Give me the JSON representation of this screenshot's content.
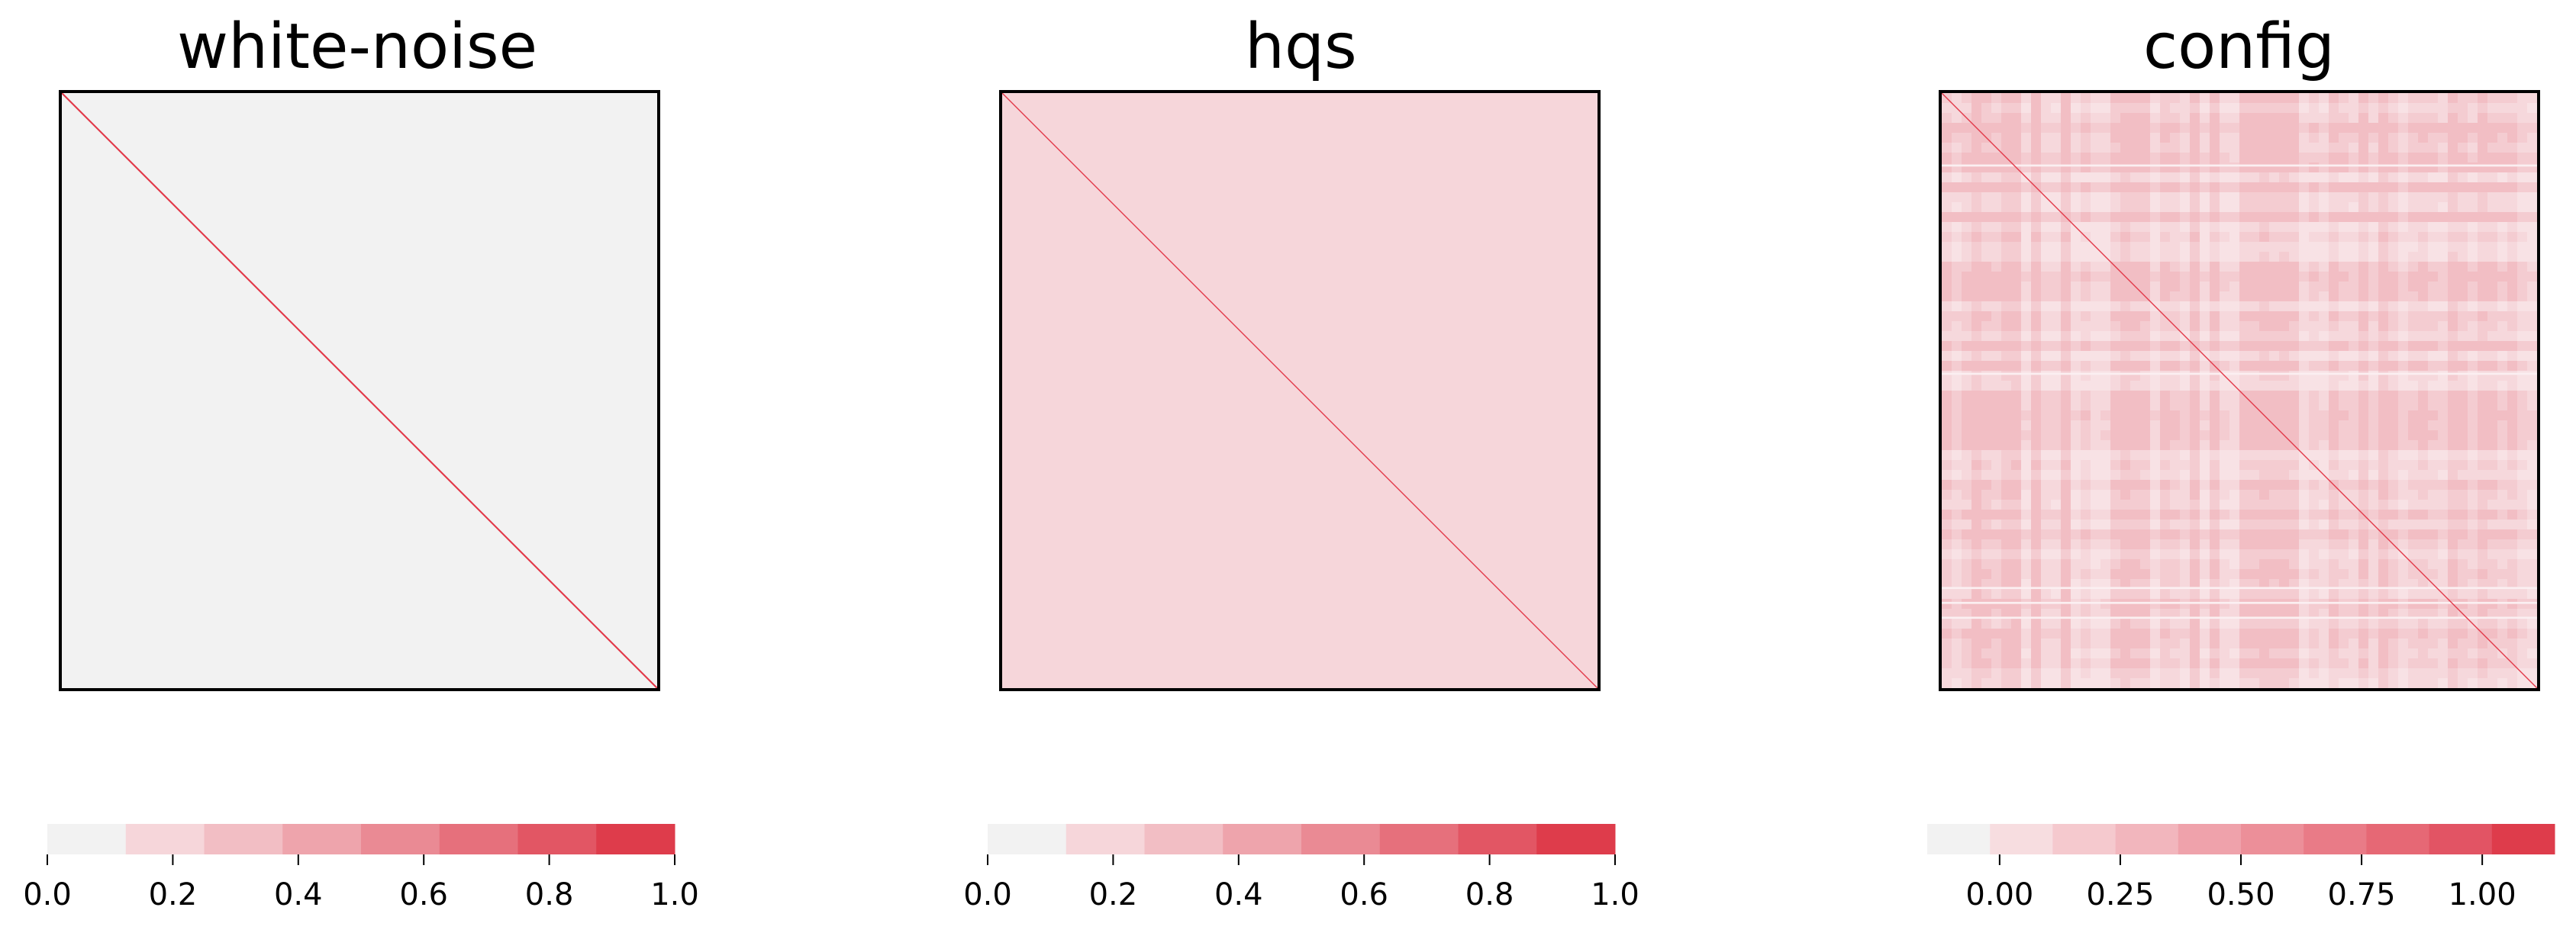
{
  "chart_data": [
    {
      "type": "heatmap",
      "title": "white-noise",
      "matrix": "correlation",
      "off_diagonal_value": 0.0,
      "diagonal_value": 1.0,
      "colorbar": {
        "range": [
          0.0,
          1.0
        ],
        "bins": 8,
        "ticks": [
          0.0,
          0.2,
          0.4,
          0.6,
          0.8,
          1.0
        ],
        "tick_labels": [
          "0.0",
          "0.2",
          "0.4",
          "0.6",
          "0.8",
          "1.0"
        ]
      }
    },
    {
      "type": "heatmap",
      "title": "hqs",
      "matrix": "correlation",
      "off_diagonal_value": 0.15,
      "diagonal_value": 1.0,
      "colorbar": {
        "range": [
          0.0,
          1.0
        ],
        "bins": 8,
        "ticks": [
          0.0,
          0.2,
          0.4,
          0.6,
          0.8,
          1.0
        ],
        "tick_labels": [
          "0.0",
          "0.2",
          "0.4",
          "0.6",
          "0.8",
          "1.0"
        ]
      }
    },
    {
      "type": "heatmap",
      "title": "config",
      "matrix": "correlation",
      "off_diagonal_value_range": [
        0.05,
        0.3
      ],
      "diagonal_value": 1.0,
      "colorbar": {
        "range": [
          -0.15,
          1.15
        ],
        "bins": 10,
        "ticks": [
          0.0,
          0.25,
          0.5,
          0.75,
          1.0
        ],
        "tick_labels": [
          "0.00",
          "0.25",
          "0.50",
          "0.75",
          "1.00"
        ]
      }
    }
  ],
  "colors": {
    "palette": [
      "#f2f2f2",
      "#f6d6da",
      "#f2bec4",
      "#eea4ac",
      "#ea8a94",
      "#e6707c",
      "#e25664",
      "#de3c4b"
    ],
    "diagonal": "#e23a4a"
  }
}
